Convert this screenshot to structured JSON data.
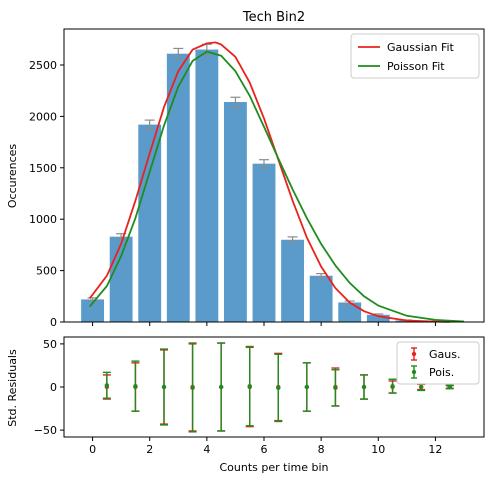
{
  "chart_data": [
    {
      "panel": "main",
      "type": "bar",
      "title": "Tech Bin2",
      "xlabel": "",
      "ylabel": "Occurences",
      "xlim": [
        -1,
        13.7
      ],
      "ylim": [
        0,
        2850
      ],
      "x": [
        0,
        1,
        2,
        3,
        4,
        5,
        6,
        7,
        8,
        9,
        10,
        11,
        12
      ],
      "values": [
        220,
        830,
        1920,
        2610,
        2650,
        2140,
        1540,
        800,
        450,
        190,
        70,
        15,
        5
      ],
      "errors": [
        15,
        29,
        44,
        51,
        51,
        46,
        39,
        28,
        21,
        14,
        8,
        4,
        2
      ],
      "yticks": [
        0,
        500,
        1000,
        1500,
        2000,
        2500
      ],
      "bar_color": "#5b9bcb",
      "error_color": "#8c8c8c",
      "fits": [
        {
          "name": "Gaussian Fit",
          "color": "#e8221d",
          "x": [
            -0.1,
            0.5,
            1,
            1.5,
            2,
            2.5,
            3,
            3.5,
            4,
            4.3,
            4.5,
            5,
            5.5,
            6,
            6.5,
            7,
            7.5,
            8,
            8.5,
            9,
            9.5,
            10,
            11,
            12,
            12.5
          ],
          "y": [
            230,
            450,
            760,
            1180,
            1640,
            2090,
            2440,
            2650,
            2710,
            2720,
            2700,
            2580,
            2330,
            1980,
            1580,
            1180,
            820,
            540,
            330,
            190,
            105,
            55,
            15,
            4,
            1
          ]
        },
        {
          "name": "Poisson Fit",
          "color": "#1e8c1e",
          "x": [
            -0.1,
            0.5,
            1,
            1.5,
            2,
            2.5,
            3,
            3.5,
            4,
            4.5,
            5,
            5.5,
            6,
            6.5,
            7,
            7.5,
            8,
            8.5,
            9,
            9.5,
            10,
            11,
            12,
            13
          ],
          "y": [
            150,
            350,
            640,
            1010,
            1460,
            1910,
            2290,
            2540,
            2630,
            2590,
            2440,
            2200,
            1900,
            1590,
            1290,
            1010,
            760,
            550,
            380,
            250,
            160,
            60,
            20,
            5
          ]
        }
      ],
      "legend": {
        "position": "top-right",
        "entries": [
          "Gaussian Fit",
          "Poisson Fit"
        ]
      }
    },
    {
      "panel": "residuals",
      "type": "scatter",
      "title": "",
      "xlabel": "Counts per time bin",
      "ylabel": "Std. Residuals",
      "xlim": [
        -1,
        13.7
      ],
      "ylim": [
        -58,
        58
      ],
      "xticks": [
        0,
        2,
        4,
        6,
        8,
        10,
        12
      ],
      "yticks": [
        -50,
        0,
        50
      ],
      "series": [
        {
          "name": "Gaus.",
          "color": "#e8221d",
          "x": [
            0.5,
            1.5,
            2.5,
            3.5,
            4.5,
            5.5,
            6.5,
            7.5,
            8.5,
            9.5,
            10.5,
            11.5,
            12.5
          ],
          "y": [
            0,
            0,
            0,
            0,
            0,
            0,
            0,
            0,
            0,
            0,
            0,
            0,
            0
          ],
          "err": [
            14,
            28,
            43,
            51,
            51,
            46,
            39,
            28,
            22,
            14,
            7,
            3,
            1.5
          ]
        },
        {
          "name": "Pois.",
          "color": "#1e8c1e",
          "x": [
            0.5,
            1.5,
            2.5,
            3.5,
            4.5,
            5.5,
            6.5,
            7.5,
            8.5,
            9.5,
            10.5,
            11.5,
            12.5
          ],
          "y": [
            2,
            1,
            0,
            -1,
            0,
            1,
            -1,
            0,
            -1,
            0,
            1,
            0,
            0
          ],
          "err": [
            15,
            29,
            44,
            51,
            51,
            46,
            39,
            28,
            21,
            14,
            8,
            4,
            2
          ]
        }
      ],
      "legend": {
        "position": "top-right",
        "entries": [
          "Gaus.",
          "Pois."
        ]
      }
    }
  ]
}
